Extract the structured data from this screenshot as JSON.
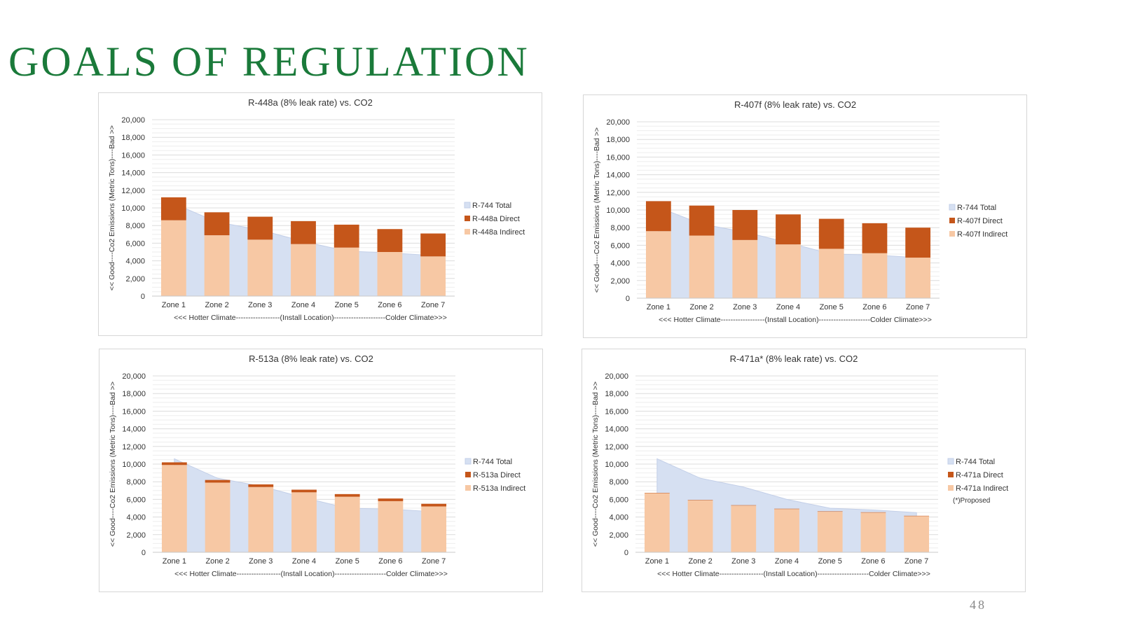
{
  "slide": {
    "title": "GOALS OF REGULATION",
    "page_number": "48"
  },
  "palette": {
    "area": "#d6e0f2",
    "area_line": "#c3cfe8",
    "direct": "#c5561a",
    "indirect": "#f7c8a4",
    "grid": "#e6e6e6",
    "title_green": "#1a7a3a"
  },
  "chart_data": [
    {
      "type": "bar",
      "title": "R-448a (8% leak rate) vs. CO2",
      "ylabel": "<< Good----Co2 Emissions (Metric Tons)----Bad >>",
      "xlabel": "<<< Hotter Climate------------------(Install Location)---------------------Colder Climate>>>",
      "categories": [
        "Zone 1",
        "Zone 2",
        "Zone 3",
        "Zone 4",
        "Zone 5",
        "Zone 6",
        "Zone 7"
      ],
      "ylim": [
        0,
        20000
      ],
      "yticks": [
        "0",
        "2,000",
        "4,000",
        "6,000",
        "8,000",
        "10,000",
        "12,000",
        "14,000",
        "16,000",
        "18,000",
        "20,000"
      ],
      "series": [
        {
          "name": "R-744 Total",
          "kind": "area",
          "values": [
            10500,
            8400,
            7500,
            6200,
            5100,
            4900,
            4600
          ]
        },
        {
          "name": "R-448a Indirect",
          "kind": "bar",
          "values": [
            8600,
            6900,
            6400,
            5900,
            5500,
            5000,
            4500
          ]
        },
        {
          "name": "R-448a Direct",
          "kind": "bar",
          "values": [
            2600,
            2600,
            2600,
            2600,
            2600,
            2600,
            2600
          ]
        }
      ],
      "legend": [
        "R-744 Total",
        "R-448a Direct",
        "R-448a Indirect"
      ],
      "note": ""
    },
    {
      "type": "bar",
      "title": "R-407f (8% leak rate) vs. CO2",
      "ylabel": "<< Good----Co2 Emissions (Metric Tons)----Bad >>",
      "xlabel": "<<< Hotter Climate------------------(Install Location)---------------------Colder Climate>>>",
      "categories": [
        "Zone 1",
        "Zone 2",
        "Zone 3",
        "Zone 4",
        "Zone 5",
        "Zone 6",
        "Zone 7"
      ],
      "ylim": [
        0,
        20000
      ],
      "yticks": [
        "0",
        "2,000",
        "4,000",
        "6,000",
        "8,000",
        "10,000",
        "12,000",
        "14,000",
        "16,000",
        "18,000",
        "20,000"
      ],
      "series": [
        {
          "name": "R-744 Total",
          "kind": "area",
          "values": [
            10300,
            8400,
            7500,
            6300,
            5000,
            4900,
            4600
          ]
        },
        {
          "name": "R-407f Indirect",
          "kind": "bar",
          "values": [
            7600,
            7100,
            6600,
            6100,
            5600,
            5100,
            4600
          ]
        },
        {
          "name": "R-407f Direct",
          "kind": "bar",
          "values": [
            3400,
            3400,
            3400,
            3400,
            3400,
            3400,
            3400
          ]
        }
      ],
      "legend": [
        "R-744 Total",
        "R-407f Direct",
        "R-407f Indirect"
      ],
      "note": ""
    },
    {
      "type": "bar",
      "title": "R-513a (8% leak rate) vs. CO2",
      "ylabel": "<< Good----Co2 Emissions (Metric Tons)----Bad >>",
      "xlabel": "<<< Hotter Climate------------------(Install Location)---------------------Colder Climate>>>",
      "categories": [
        "Zone 1",
        "Zone 2",
        "Zone 3",
        "Zone 4",
        "Zone 5",
        "Zone 6",
        "Zone 7"
      ],
      "ylim": [
        0,
        20000
      ],
      "yticks": [
        "0",
        "2,000",
        "4,000",
        "6,000",
        "8,000",
        "10,000",
        "12,000",
        "14,000",
        "16,000",
        "18,000",
        "20,000"
      ],
      "series": [
        {
          "name": "R-744 Total",
          "kind": "area",
          "values": [
            10600,
            8400,
            7500,
            6200,
            5000,
            4900,
            4600
          ]
        },
        {
          "name": "R-513a Indirect",
          "kind": "bar",
          "values": [
            9900,
            7900,
            7400,
            6800,
            6300,
            5800,
            5200
          ]
        },
        {
          "name": "R-513a Direct",
          "kind": "bar",
          "values": [
            300,
            300,
            300,
            300,
            300,
            300,
            300
          ]
        }
      ],
      "legend": [
        "R-744 Total",
        "R-513a Direct",
        "R-513a Indirect"
      ],
      "note": ""
    },
    {
      "type": "bar",
      "title": "R-471a* (8% leak rate) vs. CO2",
      "ylabel": "<< Good----Co2 Emissions (Metric Tons)----Bad >>",
      "xlabel": "<<< Hotter Climate------------------(Install Location)---------------------Colder Climate>>>",
      "categories": [
        "Zone 1",
        "Zone 2",
        "Zone 3",
        "Zone 4",
        "Zone 5",
        "Zone 6",
        "Zone 7"
      ],
      "ylim": [
        0,
        20000
      ],
      "yticks": [
        "0",
        "2,000",
        "4,000",
        "6,000",
        "8,000",
        "10,000",
        "12,000",
        "14,000",
        "16,000",
        "18,000",
        "20,000"
      ],
      "series": [
        {
          "name": "R-744 Total",
          "kind": "area",
          "values": [
            10600,
            8400,
            7400,
            6000,
            5000,
            4800,
            4500
          ]
        },
        {
          "name": "R-471a Indirect",
          "kind": "bar",
          "values": [
            6700,
            5900,
            5300,
            4900,
            4600,
            4500,
            4100
          ]
        },
        {
          "name": "R-471a Direct",
          "kind": "bar",
          "values": [
            40,
            40,
            40,
            40,
            40,
            40,
            40
          ]
        }
      ],
      "legend": [
        "R-744 Total",
        "R-471a Direct",
        "R-471a Indirect"
      ],
      "note": "(*)Proposed"
    }
  ]
}
